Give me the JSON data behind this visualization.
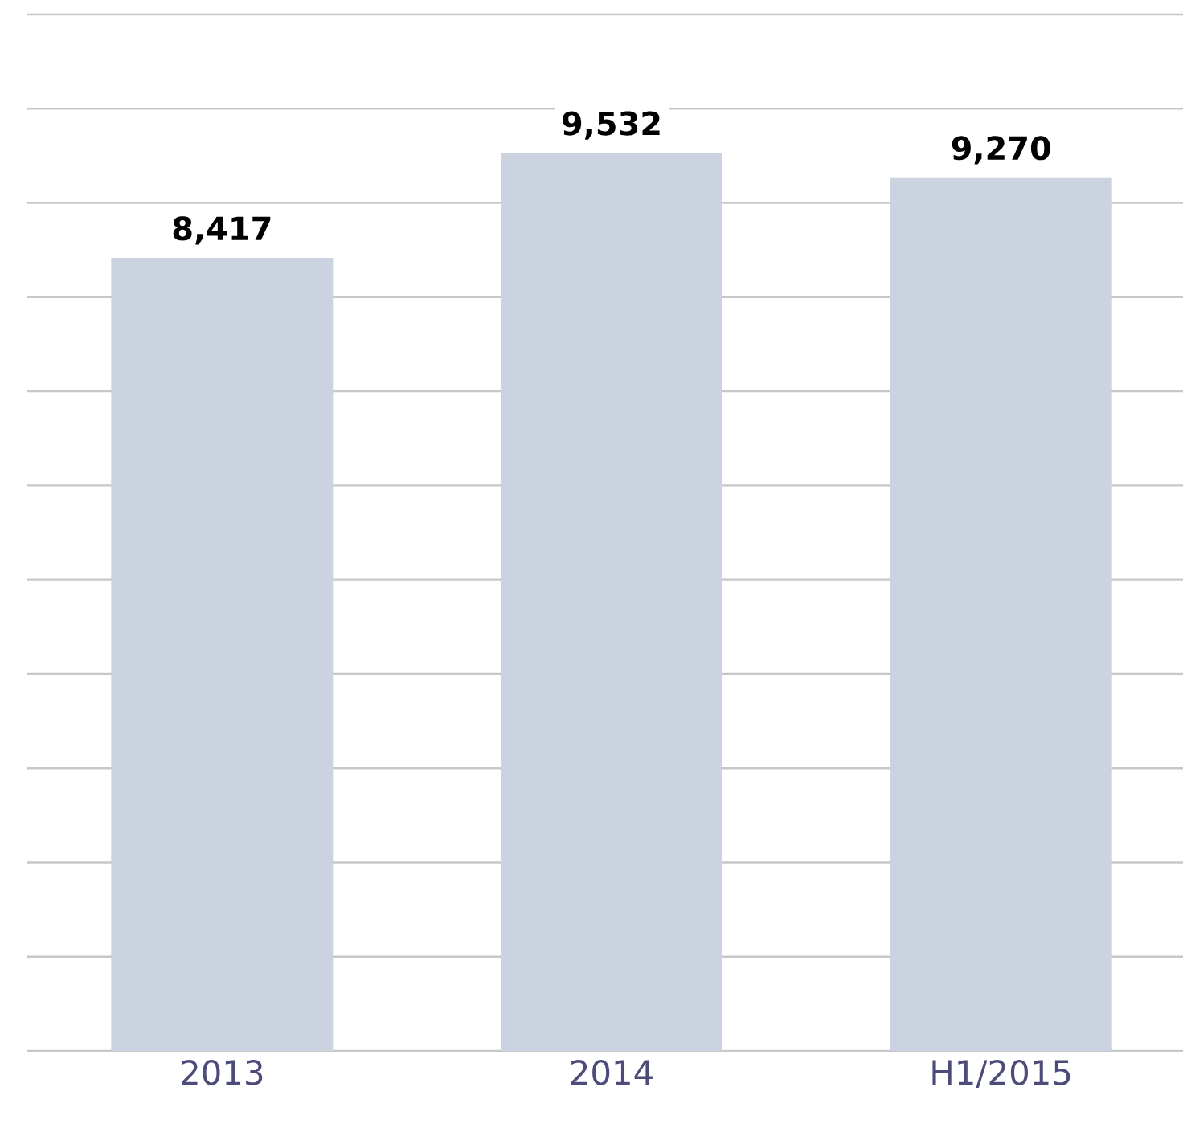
{
  "chart_data": {
    "type": "bar",
    "categories": [
      "2013",
      "2014",
      "H1/2015"
    ],
    "values": [
      8417,
      9532,
      9270
    ],
    "value_labels": [
      "8,417",
      "9,532",
      "9,270"
    ],
    "color": "#cbd3e0",
    "ylim": [
      0,
      11000
    ],
    "yticks": [
      {
        "value": 0,
        "label": null
      },
      {
        "value": 1000,
        "label": null
      },
      {
        "value": 2000,
        "label": null
      },
      {
        "value": 3000,
        "label": null
      },
      {
        "value": 4000,
        "label": null
      },
      {
        "value": 5000,
        "label": null
      },
      {
        "value": 6000,
        "label": null
      },
      {
        "value": 7000,
        "label": null
      },
      {
        "value": 8000,
        "label": null
      },
      {
        "value": 9000,
        "label": null
      },
      {
        "value": 10000,
        "label": null
      },
      {
        "value": 11000,
        "label": null
      }
    ],
    "grid": "y",
    "tick_labels": "x"
  }
}
